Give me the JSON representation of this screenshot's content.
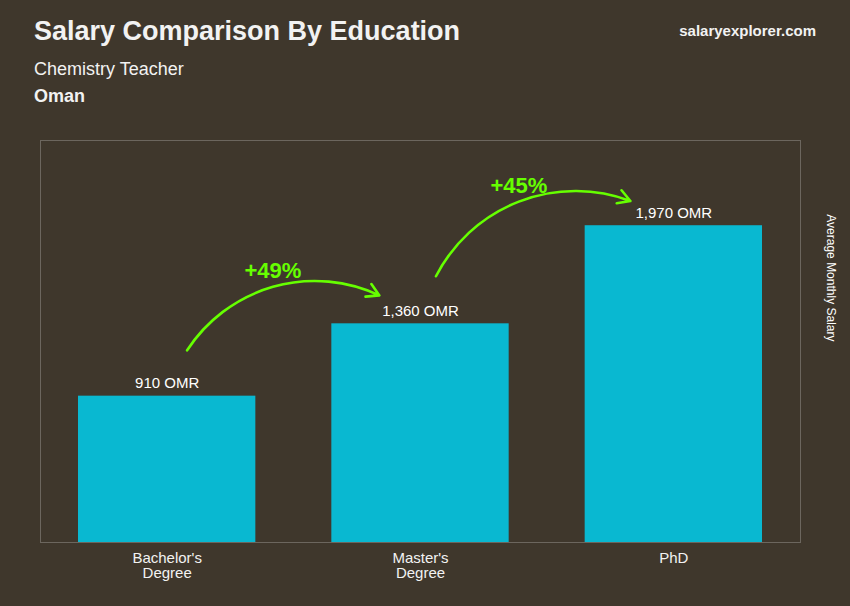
{
  "chart_data": {
    "type": "bar",
    "title": "Salary Comparison By Education",
    "subtitle": "Chemistry Teacher",
    "country": "Oman",
    "caption": "salaryexplorer.com",
    "ylabel": "Average Monthly Salary",
    "categories": [
      "Bachelor's\nDegree",
      "Master's\nDegree",
      "PhD"
    ],
    "values": [
      910,
      1360,
      1970
    ],
    "value_labels": [
      "910 OMR",
      "1,360 OMR",
      "1,970 OMR"
    ],
    "data_labels": true,
    "color": "#00cfef",
    "ylim": [
      0,
      2500
    ],
    "tick_labels": "x",
    "grid": false,
    "annotations": [
      {
        "text": "+49%",
        "from": "Bachelor's\nDegree",
        "to": "Master's\nDegree",
        "color": "#66ff00"
      },
      {
        "text": "+45%",
        "from": "Master's\nDegree",
        "to": "PhD",
        "color": "#66ff00"
      }
    ]
  }
}
